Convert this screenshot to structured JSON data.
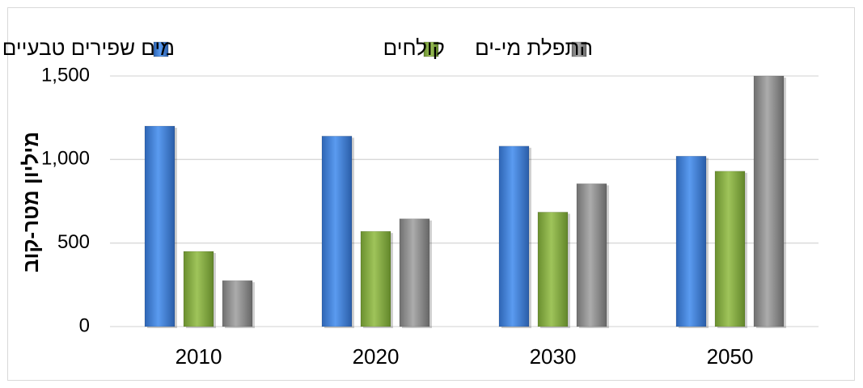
{
  "chart_data": {
    "type": "bar",
    "title": "",
    "xlabel": "",
    "ylabel": "מיליון מטר-קוב",
    "ylim": [
      0,
      1500
    ],
    "yticks": [
      0,
      500,
      1000,
      1500
    ],
    "ytick_labels": [
      "0",
      "500",
      "1,000",
      "1,500"
    ],
    "grid": true,
    "legend_position": "top",
    "categories": [
      "2010",
      "2020",
      "2030",
      "2050"
    ],
    "series": [
      {
        "name": "מים שפירים טבעיים",
        "color": "#3b7dd8",
        "values": [
          1200,
          1140,
          1080,
          1020
        ]
      },
      {
        "name": "קולחים",
        "color": "#7fa83d",
        "values": [
          450,
          570,
          685,
          930
        ]
      },
      {
        "name": "התפלת מי-ים",
        "color": "#8c8c8c",
        "values": [
          275,
          645,
          855,
          1500
        ]
      }
    ]
  }
}
